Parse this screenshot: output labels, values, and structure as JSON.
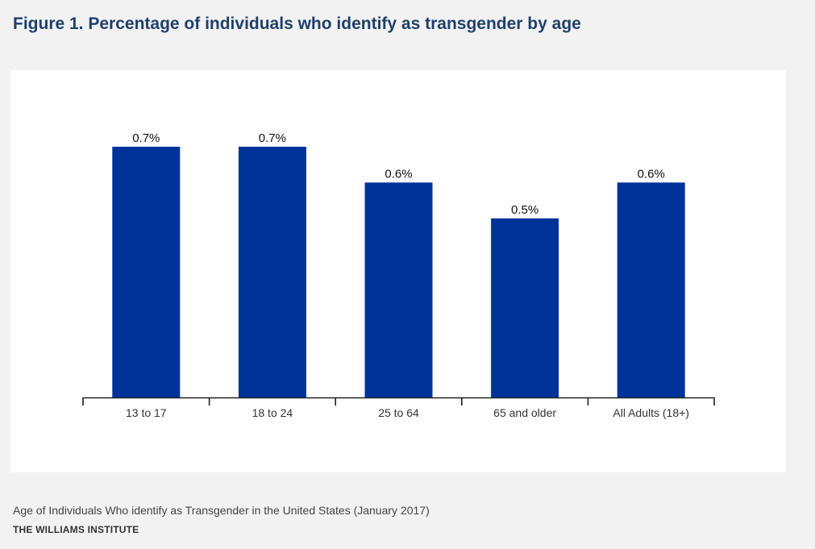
{
  "page": {
    "title": "Figure 1. Percentage of individuals who identify as transgender by age",
    "caption": "Age of Individuals Who identify as Transgender in the United States (January 2017)",
    "source": "THE WILLIAMS INSTITUTE"
  },
  "colors": {
    "bar": "#00339a",
    "title": "#1f3f6b",
    "axis": "#222222"
  },
  "chart_data": {
    "type": "bar",
    "categories": [
      "13 to 17",
      "18 to 24",
      "25 to 64",
      "65 and older",
      "All Adults (18+)"
    ],
    "values": [
      0.7,
      0.7,
      0.6,
      0.5,
      0.6
    ],
    "value_labels": [
      "0.7%",
      "0.7%",
      "0.6%",
      "0.5%",
      "0.6%"
    ],
    "unit": "%",
    "ylim": [
      0,
      0.7
    ],
    "grid": false,
    "legend": "none"
  }
}
